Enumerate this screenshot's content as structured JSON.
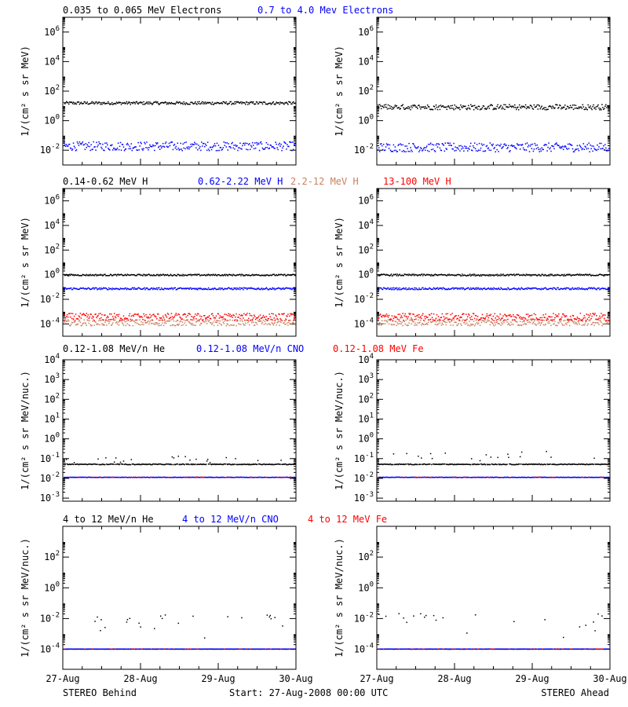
{
  "colors": {
    "black": "#000000",
    "blue": "#0000ff",
    "brown": "#c88060",
    "red": "#ff0000"
  },
  "rows": [
    {
      "legend": [
        {
          "text": "0.035 to 0.065 MeV Electrons",
          "color": "#000000"
        },
        {
          "text": "0.7 to 4.0 Mev Electrons",
          "color": "#0000ff"
        }
      ],
      "ylabel_left": "1/(cm² s sr MeV)",
      "ylabel_right": "1/(cm² s sr MeV)",
      "yticks": [
        {
          "base": "10",
          "exp": "6"
        },
        {
          "base": "10",
          "exp": "4"
        },
        {
          "base": "10",
          "exp": "2"
        },
        {
          "base": "10",
          "exp": "0"
        },
        {
          "base": "10",
          "exp": "-2"
        }
      ]
    },
    {
      "legend": [
        {
          "text": "0.14-0.62 MeV H",
          "color": "#000000"
        },
        {
          "text": "0.62-2.22 MeV H",
          "color": "#0000ff"
        },
        {
          "text": "2.2-12 MeV H",
          "color": "#c88060"
        },
        {
          "text": "13-100 MeV H",
          "color": "#ff0000"
        }
      ],
      "ylabel_left": "1/(cm² s sr MeV)",
      "ylabel_right": "1/(cm² s sr MeV)",
      "yticks": [
        {
          "base": "10",
          "exp": "6"
        },
        {
          "base": "10",
          "exp": "4"
        },
        {
          "base": "10",
          "exp": "2"
        },
        {
          "base": "10",
          "exp": "0"
        },
        {
          "base": "10",
          "exp": "-2"
        },
        {
          "base": "10",
          "exp": "-4"
        }
      ]
    },
    {
      "legend": [
        {
          "text": "0.12-1.08 MeV/n He",
          "color": "#000000"
        },
        {
          "text": "0.12-1.08 MeV/n CNO",
          "color": "#0000ff"
        },
        {
          "text": "0.12-1.08 MeV Fe",
          "color": "#ff0000"
        }
      ],
      "ylabel_left": "1/(cm² s sr MeV/nuc.)",
      "ylabel_right": "1/(cm² s sr MeV/nuc.)",
      "yticks": [
        {
          "base": "10",
          "exp": "4"
        },
        {
          "base": "10",
          "exp": "3"
        },
        {
          "base": "10",
          "exp": "2"
        },
        {
          "base": "10",
          "exp": "1"
        },
        {
          "base": "10",
          "exp": "0"
        },
        {
          "base": "10",
          "exp": "-1"
        },
        {
          "base": "10",
          "exp": "-2"
        },
        {
          "base": "10",
          "exp": "-3"
        }
      ]
    },
    {
      "legend": [
        {
          "text": "4 to 12 MeV/n He",
          "color": "#000000"
        },
        {
          "text": "4 to 12 MeV/n CNO",
          "color": "#0000ff"
        },
        {
          "text": "4 to 12 MeV Fe",
          "color": "#ff0000"
        }
      ],
      "ylabel_left": "1/(cm² s sr MeV/nuc.)",
      "ylabel_right": "1/(cm² s sr MeV/nuc.)",
      "yticks": [
        {
          "base": "10",
          "exp": "2"
        },
        {
          "base": "10",
          "exp": "0"
        },
        {
          "base": "10",
          "exp": "-2"
        },
        {
          "base": "10",
          "exp": "-4"
        }
      ]
    }
  ],
  "xticks": [
    "27-Aug",
    "28-Aug",
    "29-Aug",
    "30-Aug"
  ],
  "footer": {
    "left": "STEREO Behind",
    "center": "Start: 27-Aug-2008 00:00 UTC",
    "right": "STEREO Ahead"
  },
  "chart_data": [
    {
      "type": "scatter",
      "panel": "behind-electrons",
      "yscale": "log",
      "ylim": [
        0.001,
        10000000
      ],
      "xlim": [
        "27-Aug",
        "30-Aug"
      ],
      "series": [
        {
          "name": "0.035 to 0.065 MeV Electrons",
          "color": "#000000",
          "level": 15,
          "spread": 0.1,
          "outlier": 0
        },
        {
          "name": "0.7 to 4.0 Mev Electrons",
          "color": "#0000ff",
          "level": 0.018,
          "spread": 0.3,
          "outlier": 0
        }
      ]
    },
    {
      "type": "scatter",
      "panel": "ahead-electrons",
      "yscale": "log",
      "ylim": [
        0.001,
        10000000
      ],
      "xlim": [
        "27-Aug",
        "30-Aug"
      ],
      "series": [
        {
          "name": "0.035 to 0.065 MeV Electrons",
          "color": "#000000",
          "level": 8,
          "spread": 0.18,
          "outlier": 0.01
        },
        {
          "name": "0.7 to 4.0 Mev Electrons",
          "color": "#0000ff",
          "level": 0.015,
          "spread": 0.3,
          "outlier": 0
        }
      ]
    },
    {
      "type": "scatter",
      "panel": "behind-protons",
      "yscale": "log",
      "ylim": [
        1e-05,
        10000000
      ],
      "xlim": [
        "27-Aug",
        "30-Aug"
      ],
      "series": [
        {
          "name": "0.14-0.62 MeV H",
          "color": "#000000",
          "level": 0.9,
          "spread": 0.06,
          "outlier": 0
        },
        {
          "name": "0.62-2.22 MeV H",
          "color": "#0000ff",
          "level": 0.07,
          "spread": 0.08,
          "outlier": 0
        },
        {
          "name": "2.2-12 MeV H",
          "color": "#c88060",
          "level": 0.00012,
          "spread": 0.25,
          "outlier": 0
        },
        {
          "name": "13-100 MeV H",
          "color": "#ff0000",
          "level": 0.00035,
          "spread": 0.3,
          "outlier": 0
        }
      ]
    },
    {
      "type": "scatter",
      "panel": "ahead-protons",
      "yscale": "log",
      "ylim": [
        1e-05,
        10000000
      ],
      "xlim": [
        "27-Aug",
        "30-Aug"
      ],
      "series": [
        {
          "name": "0.14-0.62 MeV H",
          "color": "#000000",
          "level": 0.9,
          "spread": 0.07,
          "outlier": 0
        },
        {
          "name": "0.62-2.22 MeV H",
          "color": "#0000ff",
          "level": 0.07,
          "spread": 0.08,
          "outlier": 0
        },
        {
          "name": "2.2-12 MeV H",
          "color": "#c88060",
          "level": 0.00012,
          "spread": 0.25,
          "outlier": 0
        },
        {
          "name": "13-100 MeV H",
          "color": "#ff0000",
          "level": 0.00035,
          "spread": 0.3,
          "outlier": 0
        }
      ]
    },
    {
      "type": "scatter",
      "panel": "behind-ions-low",
      "yscale": "log",
      "ylim": [
        0.0007,
        10000
      ],
      "xlim": [
        "27-Aug",
        "30-Aug"
      ],
      "series": [
        {
          "name": "0.12-1.08 MeV/n He",
          "color": "#000000",
          "level": 0.05,
          "spread": 0.02,
          "outlier": 0.08
        },
        {
          "name": "0.12-1.08 MeV/n CNO",
          "color": "#0000ff",
          "level": 0.011,
          "spread": 0.01,
          "outlier": 0
        },
        {
          "name": "0.12-1.08 MeV Fe",
          "color": "#ff0000",
          "level": 0.011,
          "spread": 0.01,
          "outlier": 0
        }
      ]
    },
    {
      "type": "scatter",
      "panel": "ahead-ions-low",
      "yscale": "log",
      "ylim": [
        0.0007,
        10000
      ],
      "xlim": [
        "27-Aug",
        "30-Aug"
      ],
      "series": [
        {
          "name": "0.12-1.08 MeV/n He",
          "color": "#000000",
          "level": 0.05,
          "spread": 0.02,
          "outlier": 0.2
        },
        {
          "name": "0.12-1.08 MeV/n CNO",
          "color": "#0000ff",
          "level": 0.011,
          "spread": 0.01,
          "outlier": 0
        },
        {
          "name": "0.12-1.08 MeV Fe",
          "color": "#ff0000",
          "level": 0.011,
          "spread": 0.01,
          "outlier": 0
        }
      ]
    },
    {
      "type": "scatter",
      "panel": "behind-ions-high",
      "yscale": "log",
      "ylim": [
        5e-06,
        10000
      ],
      "xlim": [
        "27-Aug",
        "30-Aug"
      ],
      "series": [
        {
          "name": "4 to 12 MeV/n He",
          "color": "#000000",
          "level": 0.0001,
          "spread": 0.005,
          "outlier": 0.02
        },
        {
          "name": "4 to 12 MeV/n CNO",
          "color": "#0000ff",
          "level": 0.0001,
          "spread": 0.005,
          "outlier": 0
        },
        {
          "name": "4 to 12 MeV Fe",
          "color": "#ff0000",
          "level": 0.0001,
          "spread": 0.005,
          "outlier": 0
        }
      ]
    },
    {
      "type": "scatter",
      "panel": "ahead-ions-high",
      "yscale": "log",
      "ylim": [
        5e-06,
        10000
      ],
      "xlim": [
        "27-Aug",
        "30-Aug"
      ],
      "series": [
        {
          "name": "4 to 12 MeV/n He",
          "color": "#000000",
          "level": 0.0001,
          "spread": 0.005,
          "outlier": 0.02
        },
        {
          "name": "4 to 12 MeV/n CNO",
          "color": "#0000ff",
          "level": 0.0001,
          "spread": 0.005,
          "outlier": 0
        },
        {
          "name": "4 to 12 MeV Fe",
          "color": "#ff0000",
          "level": 0.0001,
          "spread": 0.005,
          "outlier": 0
        }
      ]
    }
  ]
}
